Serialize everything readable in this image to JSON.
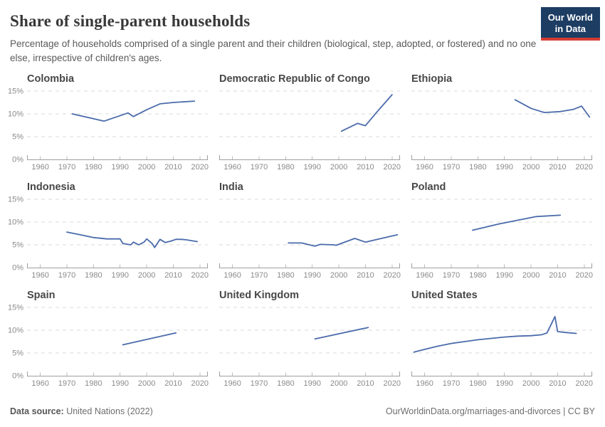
{
  "header": {
    "title": "Share of single-parent households",
    "subtitle": "Percentage of households comprised of a single parent and their children (biological, step, adopted, or fostered) and no one else, irrespective of children's ages.",
    "logo": {
      "line1": "Our World",
      "line2": "in Data"
    }
  },
  "footer": {
    "source_label": "Data source:",
    "source_value": " United Nations (2022)",
    "url": "OurWorldinData.org/marriages-and-divorces",
    "separator": " | ",
    "license": "CC BY"
  },
  "colors": {
    "line": "#4b6bab",
    "grid": "#d9d9d9",
    "axis": "#9e9e9e",
    "tick": "#bdbdbd",
    "tick_label": "#8a8a8a",
    "panel_title": "#474747",
    "logo_bg": "#1d3d63",
    "logo_stripe": "#d73c34"
  },
  "axes": {
    "xlim": [
      1955,
      2023
    ],
    "x_ticks": [
      1960,
      1970,
      1980,
      1990,
      2000,
      2010,
      2020
    ],
    "ylim": [
      0,
      15.6
    ],
    "y_gridlines": [
      5,
      10,
      15
    ],
    "y_ticks": [
      {
        "value": 0,
        "label": "0%"
      },
      {
        "value": 5,
        "label": "5%"
      },
      {
        "value": 10,
        "label": "10%"
      },
      {
        "value": 15,
        "label": "15%"
      }
    ],
    "y_labels_first_column_only": true,
    "grid_dashed": true
  },
  "chart_data": [
    {
      "type": "line",
      "title": "Colombia",
      "x": [
        1972,
        1984,
        1993,
        1995,
        2000,
        2005,
        2010,
        2018
      ],
      "y": [
        10.0,
        8.4,
        10.2,
        9.4,
        10.9,
        12.2,
        12.5,
        12.8
      ]
    },
    {
      "type": "line",
      "title": "Democratic Republic of Congo",
      "x": [
        2001,
        2007,
        2010,
        2014,
        2020
      ],
      "y": [
        6.2,
        7.9,
        7.4,
        10.2,
        14.2
      ]
    },
    {
      "type": "line",
      "title": "Ethiopia",
      "x": [
        1994,
        2000,
        2005,
        2011,
        2016,
        2019,
        2022
      ],
      "y": [
        13.1,
        11.2,
        10.3,
        10.5,
        11.0,
        11.7,
        9.3
      ]
    },
    {
      "type": "line",
      "title": "Indonesia",
      "x": [
        1970,
        1976,
        1980,
        1985,
        1990,
        1991,
        1993,
        1994,
        1995,
        1996,
        1997,
        1999,
        2000,
        2002,
        2003,
        2005,
        2007,
        2009,
        2011,
        2013,
        2015,
        2019
      ],
      "y": [
        7.8,
        7.1,
        6.6,
        6.3,
        6.3,
        5.3,
        5.1,
        5.0,
        5.6,
        5.3,
        5.0,
        5.6,
        6.3,
        5.3,
        4.4,
        6.2,
        5.5,
        5.8,
        6.2,
        6.2,
        6.1,
        5.7
      ]
    },
    {
      "type": "line",
      "title": "India",
      "x": [
        1981,
        1986,
        1991,
        1993,
        1998,
        1999,
        2006,
        2010,
        2016,
        2022
      ],
      "y": [
        5.4,
        5.4,
        4.7,
        5.1,
        5.0,
        4.9,
        6.4,
        5.6,
        6.4,
        7.2
      ]
    },
    {
      "type": "line",
      "title": "Poland",
      "x": [
        1978,
        1988,
        2002,
        2011
      ],
      "y": [
        8.2,
        9.6,
        11.2,
        11.5
      ]
    },
    {
      "type": "line",
      "title": "Spain",
      "x": [
        1991,
        2011
      ],
      "y": [
        6.8,
        9.4
      ]
    },
    {
      "type": "line",
      "title": "United Kingdom",
      "x": [
        1991,
        2011
      ],
      "y": [
        8.1,
        10.6
      ]
    },
    {
      "type": "line",
      "title": "United States",
      "x": [
        1956,
        1960,
        1965,
        1970,
        1975,
        1980,
        1985,
        1990,
        1995,
        2000,
        2004,
        2006,
        2009,
        2010,
        2013,
        2017
      ],
      "y": [
        5.2,
        5.8,
        6.5,
        7.1,
        7.5,
        7.9,
        8.2,
        8.5,
        8.7,
        8.8,
        9.0,
        9.4,
        13.0,
        9.7,
        9.5,
        9.3
      ]
    }
  ]
}
